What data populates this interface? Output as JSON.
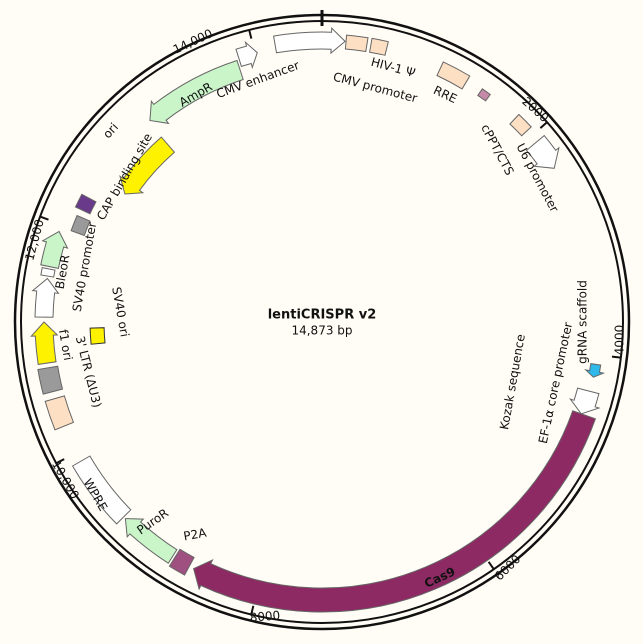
{
  "title": "lentiCRISPR v2",
  "size": "14,873 bp",
  "ticks": [
    "14,000",
    "2000",
    "4000",
    "6000",
    "8000",
    "10,000",
    "12,000"
  ],
  "features": [
    {
      "label": "CMV enhancer"
    },
    {
      "label": "CMV promoter"
    },
    {
      "label": "HIV-1 Ψ"
    },
    {
      "label": "RRE"
    },
    {
      "label": "cPPT/CTS"
    },
    {
      "label": "U6 promoter"
    },
    {
      "label": "gRNA scaffold"
    },
    {
      "label": "EF-1α core promoter"
    },
    {
      "label": "Kozak sequence"
    },
    {
      "label": "Cas9"
    },
    {
      "label": "P2A"
    },
    {
      "label": "PuroR"
    },
    {
      "label": "WPRE"
    },
    {
      "label": "3' LTR (ΔU3)"
    },
    {
      "label": "f1 ori"
    },
    {
      "label": "SV40 promoter"
    },
    {
      "label": "BleoR"
    },
    {
      "label": "SV40 ori"
    },
    {
      "label": "CAP binding site"
    },
    {
      "label": "ori"
    },
    {
      "label": "AmpR"
    }
  ]
}
